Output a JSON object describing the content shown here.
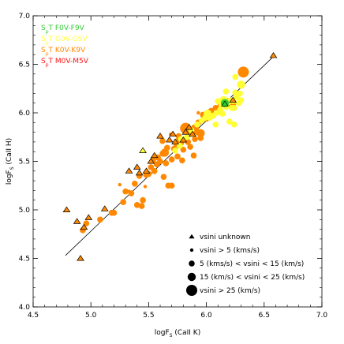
{
  "chart_data": {
    "type": "scatter",
    "xlabel": "logF_s (CaII K)",
    "ylabel": "logF_s (CaII H)",
    "xlabel_parts": {
      "main": "logF",
      "sub": "S",
      "rest": " (CaII K)"
    },
    "ylabel_parts": {
      "main": "logF",
      "sub": "S",
      "rest": " (CaII H)"
    },
    "xlim": [
      4.5,
      7.0
    ],
    "ylim": [
      4.0,
      7.0
    ],
    "x_ticks": [
      "4.5",
      "5.0",
      "5.5",
      "6.0",
      "6.5",
      "7.0"
    ],
    "y_ticks": [
      "4.0",
      "4.5",
      "5.0",
      "5.5",
      "6.0",
      "6.5",
      "7.0"
    ],
    "grid": false,
    "fit_line": {
      "x": [
        4.78,
        6.58
      ],
      "y": [
        4.53,
        6.58
      ]
    },
    "spectral_types": [
      {
        "prefix": "S",
        "sub": "p",
        "suffix": "T F0V-F9V",
        "color": "#33cc33"
      },
      {
        "prefix": "S",
        "sub": "p",
        "suffix": "T G0V-G9V",
        "color": "#ffff33"
      },
      {
        "prefix": "S",
        "sub": "p",
        "suffix": "T K0V-K9V",
        "color": "#ff8800"
      },
      {
        "prefix": "S",
        "sub": "p",
        "suffix": "T M0V-M5V",
        "color": "#ff1111"
      }
    ],
    "legend": [
      {
        "label": "vsini unknown",
        "marker": "triangle"
      },
      {
        "label": "vsini > 5 (kms/s)",
        "marker": "circle",
        "size": 1
      },
      {
        "label": "5 (kms/s) < vsini < 15 (km/s)",
        "marker": "circle",
        "size": 2
      },
      {
        "label": "15 (km/s) < vsini < 25 (km/s)",
        "marker": "circle",
        "size": 3
      },
      {
        "label": "vsini > 25 (km/s)",
        "marker": "circle",
        "size": 4
      }
    ],
    "legend_position": "lower-right",
    "series": [
      {
        "spectral_type": "K0V-K9V",
        "color": "#ff8800",
        "marker": "circle",
        "points": [
          [
            4.93,
            4.79,
            2
          ],
          [
            4.96,
            4.86,
            2
          ],
          [
            5.08,
            4.9,
            2
          ],
          [
            5.18,
            4.97,
            2
          ],
          [
            5.28,
            5.08,
            2
          ],
          [
            5.3,
            5.19,
            2
          ],
          [
            5.35,
            5.17,
            2
          ],
          [
            5.38,
            5.27,
            2
          ],
          [
            5.4,
            5.05,
            2
          ],
          [
            5.45,
            5.1,
            2
          ],
          [
            5.42,
            5.35,
            2
          ],
          [
            5.48,
            5.36,
            2
          ],
          [
            5.5,
            5.37,
            2
          ],
          [
            5.52,
            5.44,
            2
          ],
          [
            5.54,
            5.52,
            2
          ],
          [
            5.55,
            5.4,
            2
          ],
          [
            5.57,
            5.47,
            2
          ],
          [
            5.58,
            5.54,
            2
          ],
          [
            5.6,
            5.5,
            2
          ],
          [
            5.62,
            5.58,
            2
          ],
          [
            5.63,
            5.34,
            2
          ],
          [
            5.65,
            5.48,
            2
          ],
          [
            5.66,
            5.64,
            2
          ],
          [
            5.67,
            5.25,
            2
          ],
          [
            5.7,
            5.52,
            2
          ],
          [
            5.72,
            5.63,
            2
          ],
          [
            5.74,
            5.68,
            2
          ],
          [
            5.75,
            5.55,
            2
          ],
          [
            5.76,
            5.72,
            2
          ],
          [
            5.78,
            5.69,
            2
          ],
          [
            5.79,
            5.51,
            2
          ],
          [
            5.8,
            5.62,
            2
          ],
          [
            5.82,
            5.72,
            2
          ],
          [
            5.84,
            5.7,
            2
          ],
          [
            5.85,
            5.78,
            2
          ],
          [
            5.86,
            5.65,
            2
          ],
          [
            5.88,
            5.8,
            2
          ],
          [
            5.89,
            5.56,
            2
          ],
          [
            5.9,
            5.73,
            2
          ],
          [
            5.92,
            5.8,
            2
          ],
          [
            5.93,
            5.9,
            2
          ],
          [
            5.95,
            5.74,
            2
          ],
          [
            5.97,
            5.98,
            2
          ],
          [
            6.0,
            5.94,
            2
          ],
          [
            6.02,
            5.99,
            2
          ],
          [
            6.04,
            6.02,
            2
          ],
          [
            6.08,
            6.05,
            2
          ],
          [
            6.12,
            6.07,
            2
          ],
          [
            6.15,
            6.14,
            2
          ],
          [
            6.2,
            6.1,
            2
          ],
          [
            5.25,
            5.26,
            1
          ],
          [
            5.33,
            5.19,
            1
          ],
          [
            5.47,
            5.24,
            1
          ],
          [
            5.69,
            5.78,
            1
          ],
          [
            5.93,
            6.0,
            1
          ],
          [
            5.7,
            5.25,
            2
          ],
          [
            5.44,
            5.04,
            2
          ],
          [
            5.2,
            4.97,
            2
          ],
          [
            5.62,
            5.71,
            2
          ],
          [
            5.76,
            5.76,
            2
          ],
          [
            5.82,
            5.84,
            4
          ],
          [
            5.95,
            5.79,
            3
          ],
          [
            6.18,
            6.11,
            3
          ],
          [
            6.32,
            6.42,
            4
          ],
          [
            6.22,
            6.08,
            3
          ],
          [
            5.9,
            5.84,
            3
          ],
          [
            5.64,
            5.59,
            3
          ]
        ]
      },
      {
        "spectral_type": "G0V-G9V",
        "color": "#ffff33",
        "marker": "circle",
        "points": [
          [
            5.73,
            5.61,
            2
          ],
          [
            5.77,
            5.66,
            2
          ],
          [
            5.83,
            5.75,
            2
          ],
          [
            5.87,
            5.82,
            2
          ],
          [
            5.92,
            5.88,
            2
          ],
          [
            5.96,
            5.92,
            2
          ],
          [
            5.99,
            5.95,
            2
          ],
          [
            6.03,
            5.95,
            2
          ],
          [
            6.06,
            5.97,
            2
          ],
          [
            6.09,
            6.0,
            2
          ],
          [
            6.12,
            6.03,
            2
          ],
          [
            6.14,
            5.99,
            2
          ],
          [
            6.17,
            6.06,
            2
          ],
          [
            6.19,
            6.11,
            2
          ],
          [
            6.21,
            6.13,
            2
          ],
          [
            6.23,
            6.12,
            2
          ],
          [
            6.26,
            6.16,
            2
          ],
          [
            6.28,
            6.1,
            2
          ],
          [
            6.3,
            6.13,
            2
          ],
          [
            6.24,
            6.05,
            2
          ],
          [
            6.2,
            5.91,
            2
          ],
          [
            6.25,
            6.21,
            2
          ],
          [
            6.29,
            6.2,
            2
          ],
          [
            6.08,
            5.88,
            2
          ],
          [
            6.13,
            6.08,
            2
          ],
          [
            6.01,
            5.99,
            3
          ],
          [
            6.17,
            6.22,
            2
          ],
          [
            6.25,
            6.37,
            2
          ],
          [
            6.22,
            6.05,
            2
          ],
          [
            6.1,
            6.12,
            2
          ],
          [
            6.24,
            5.88,
            2
          ],
          [
            5.78,
            5.73,
            2
          ],
          [
            6.3,
            6.29,
            3
          ],
          [
            6.15,
            6.13,
            3
          ]
        ]
      },
      {
        "spectral_type": "F0V-F9V",
        "color": "#33cc33",
        "marker": "circle",
        "points": [
          [
            6.16,
            6.1,
            3
          ]
        ]
      },
      {
        "spectral_type": "K0V-K9V",
        "color": "#ff8800",
        "marker": "triangle",
        "points": [
          [
            4.79,
            5.0
          ],
          [
            4.88,
            4.88
          ],
          [
            4.91,
            4.5
          ],
          [
            4.94,
            4.82
          ],
          [
            4.98,
            4.92
          ],
          [
            5.12,
            5.01
          ],
          [
            5.33,
            5.4
          ],
          [
            5.4,
            5.44
          ],
          [
            5.42,
            5.38
          ],
          [
            5.48,
            5.4
          ],
          [
            5.52,
            5.5
          ],
          [
            5.55,
            5.56
          ],
          [
            5.6,
            5.76
          ],
          [
            5.68,
            5.72
          ],
          [
            5.71,
            5.78
          ],
          [
            5.73,
            5.7
          ],
          [
            5.8,
            5.72
          ],
          [
            5.82,
            5.8
          ],
          [
            5.85,
            5.85
          ],
          [
            5.88,
            5.78
          ],
          [
            6.23,
            6.13
          ],
          [
            6.58,
            6.59
          ]
        ]
      },
      {
        "spectral_type": "G0V-G9V",
        "color": "#ffff33",
        "marker": "triangle",
        "points": [
          [
            5.45,
            5.61
          ]
        ]
      },
      {
        "spectral_type": "F0V-F9V",
        "color": "#33cc33",
        "marker": "triangle",
        "points": [
          [
            6.16,
            6.09
          ]
        ]
      }
    ]
  }
}
